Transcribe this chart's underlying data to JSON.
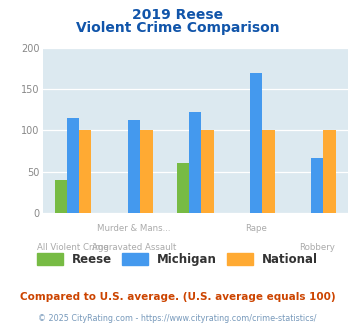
{
  "title_line1": "2019 Reese",
  "title_line2": "Violent Crime Comparison",
  "cat_labels_row1": [
    "",
    "Murder & Mans...",
    "",
    "Rape",
    ""
  ],
  "cat_labels_row2": [
    "All Violent Crime",
    "Aggravated Assault",
    "",
    "",
    "Robbery"
  ],
  "series": {
    "Reese": [
      40,
      0,
      60,
      0,
      0
    ],
    "Michigan": [
      115,
      112,
      122,
      170,
      66
    ],
    "National": [
      100,
      100,
      100,
      100,
      100
    ]
  },
  "colors": {
    "Reese": "#77bb44",
    "Michigan": "#4499ee",
    "National": "#ffaa33"
  },
  "ylim": [
    0,
    200
  ],
  "yticks": [
    0,
    50,
    100,
    150,
    200
  ],
  "bg_color": "#dce9f0",
  "title_color": "#1155aa",
  "subtitle_note": "Compared to U.S. average. (U.S. average equals 100)",
  "footer": "© 2025 CityRating.com - https://www.cityrating.com/crime-statistics/",
  "subtitle_color": "#cc4400",
  "footer_color": "#7799bb"
}
